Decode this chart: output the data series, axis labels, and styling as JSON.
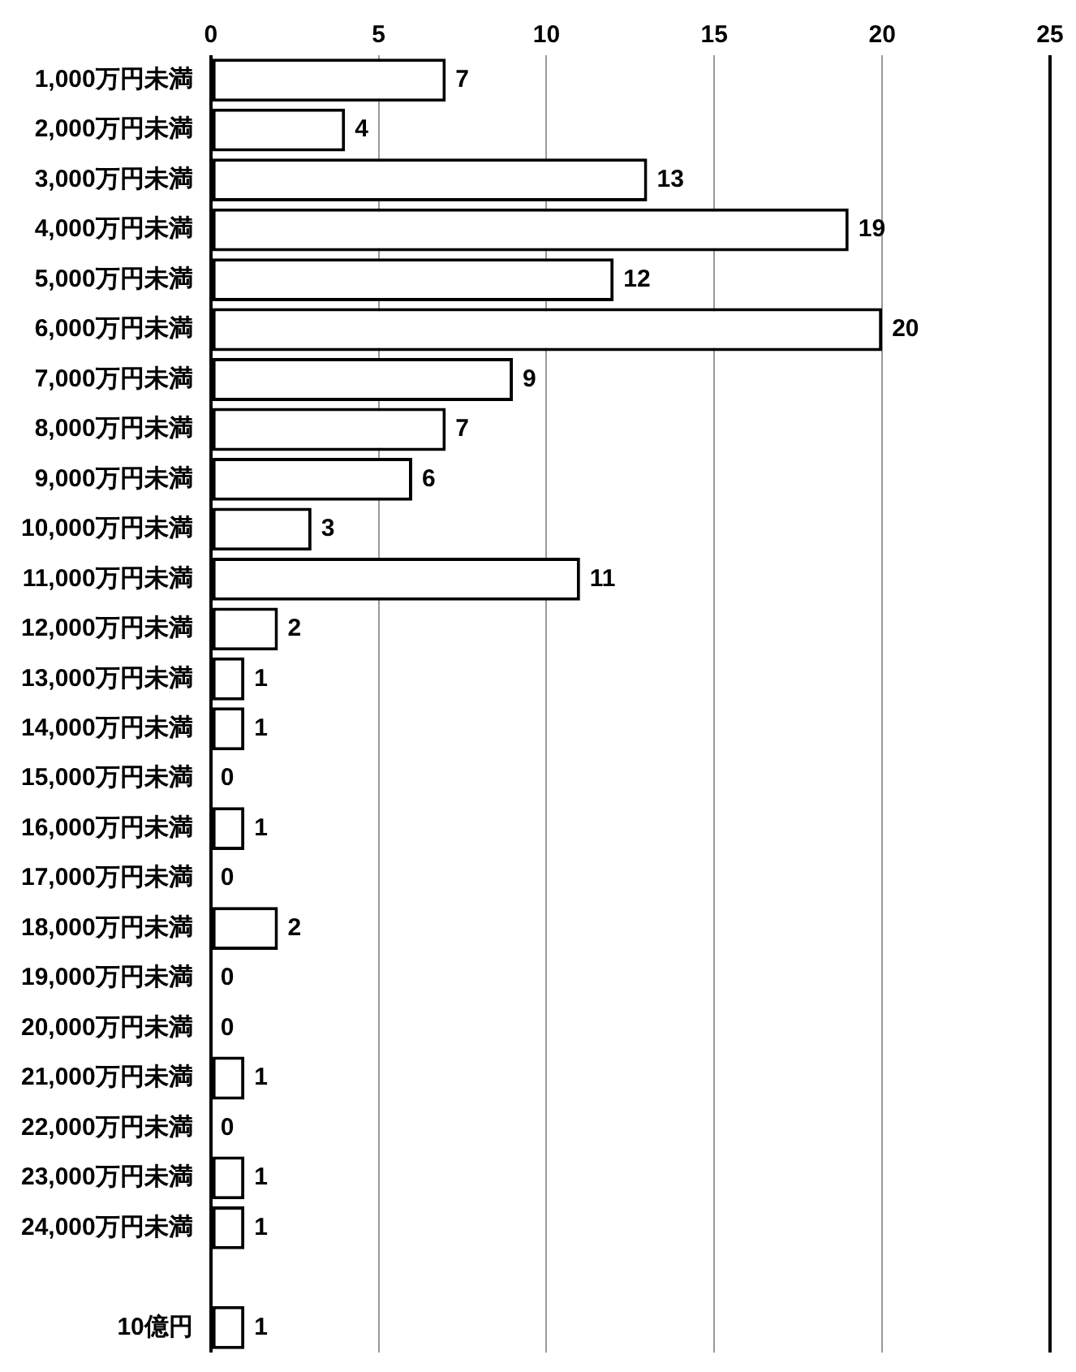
{
  "chart_data": {
    "type": "bar",
    "orientation": "horizontal",
    "categories": [
      "1,000万円未満",
      "2,000万円未満",
      "3,000万円未満",
      "4,000万円未満",
      "5,000万円未満",
      "6,000万円未満",
      "7,000万円未満",
      "8,000万円未満",
      "9,000万円未満",
      "10,000万円未満",
      "11,000万円未満",
      "12,000万円未満",
      "13,000万円未満",
      "14,000万円未満",
      "15,000万円未満",
      "16,000万円未満",
      "17,000万円未満",
      "18,000万円未満",
      "19,000万円未満",
      "20,000万円未満",
      "21,000万円未満",
      "22,000万円未満",
      "23,000万円未満",
      "24,000万円未満",
      null,
      "10億円"
    ],
    "values": [
      7,
      4,
      13,
      19,
      12,
      20,
      9,
      7,
      6,
      3,
      11,
      2,
      1,
      1,
      0,
      1,
      0,
      2,
      0,
      0,
      1,
      0,
      1,
      1,
      null,
      1
    ],
    "color": "#ffffff",
    "xlim": [
      0,
      25
    ],
    "xticks": [
      0,
      5,
      10,
      15,
      20,
      25
    ],
    "grid": "x",
    "data_labels": true,
    "legend": false
  }
}
